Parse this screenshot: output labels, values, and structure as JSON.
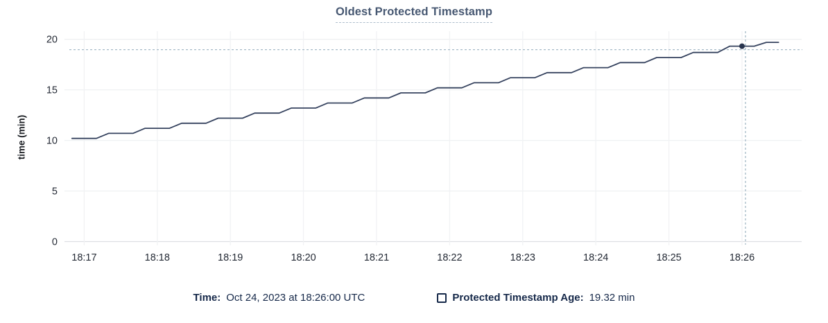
{
  "chart_data": {
    "type": "line",
    "title": "Oldest Protected Timestamp",
    "xlabel": "",
    "ylabel": "time (min)",
    "ylim": [
      0,
      20
    ],
    "yticks": [
      0,
      5,
      10,
      15,
      20
    ],
    "xticks": [
      "18:17",
      "18:18",
      "18:19",
      "18:20",
      "18:21",
      "18:22",
      "18:23",
      "18:24",
      "18:25",
      "18:26"
    ],
    "grid": true,
    "legend_position": "bottom",
    "series": [
      {
        "name": "Protected Timestamp Age",
        "unit": "min",
        "points": [
          [
            "18:16:50",
            10.2
          ],
          [
            "18:17:10",
            10.2
          ],
          [
            "18:17:20",
            10.7
          ],
          [
            "18:17:40",
            10.7
          ],
          [
            "18:17:50",
            11.2
          ],
          [
            "18:18:10",
            11.2
          ],
          [
            "18:18:20",
            11.7
          ],
          [
            "18:18:40",
            11.7
          ],
          [
            "18:18:50",
            12.2
          ],
          [
            "18:19:10",
            12.2
          ],
          [
            "18:19:20",
            12.7
          ],
          [
            "18:19:40",
            12.7
          ],
          [
            "18:19:50",
            13.2
          ],
          [
            "18:20:10",
            13.2
          ],
          [
            "18:20:20",
            13.7
          ],
          [
            "18:20:40",
            13.7
          ],
          [
            "18:20:50",
            14.2
          ],
          [
            "18:21:10",
            14.2
          ],
          [
            "18:21:20",
            14.7
          ],
          [
            "18:21:40",
            14.7
          ],
          [
            "18:21:50",
            15.2
          ],
          [
            "18:22:10",
            15.2
          ],
          [
            "18:22:20",
            15.7
          ],
          [
            "18:22:40",
            15.7
          ],
          [
            "18:22:50",
            16.2
          ],
          [
            "18:23:10",
            16.2
          ],
          [
            "18:23:20",
            16.7
          ],
          [
            "18:23:40",
            16.7
          ],
          [
            "18:23:50",
            17.2
          ],
          [
            "18:24:10",
            17.2
          ],
          [
            "18:24:20",
            17.7
          ],
          [
            "18:24:40",
            17.7
          ],
          [
            "18:24:50",
            18.2
          ],
          [
            "18:25:10",
            18.2
          ],
          [
            "18:25:20",
            18.7
          ],
          [
            "18:25:40",
            18.7
          ],
          [
            "18:25:50",
            19.32
          ],
          [
            "18:26:10",
            19.32
          ],
          [
            "18:26:20",
            19.7
          ],
          [
            "18:26:30",
            19.7
          ]
        ]
      }
    ],
    "highlight_point": {
      "time": "18:26:00",
      "value": 19.32
    }
  },
  "legend": {
    "time_label": "Time:",
    "time_value": "Oct 24, 2023 at 18:26:00 UTC",
    "series_label": "Protected Timestamp Age:",
    "series_value": "19.32 min",
    "checkbox_icon": "checkbox-unchecked-icon"
  },
  "colors": {
    "title_text": "#475872",
    "axis_text": "#242a35",
    "legend_text": "#152849",
    "line": "#35425e",
    "dot": "#26334d",
    "grid": "#eff1f3",
    "grid_vertical": "#f1f2f4",
    "axis_zero_line": "#dddfe3",
    "crosshair": "#a5b9c7",
    "title_underline": "#aebdcd"
  }
}
